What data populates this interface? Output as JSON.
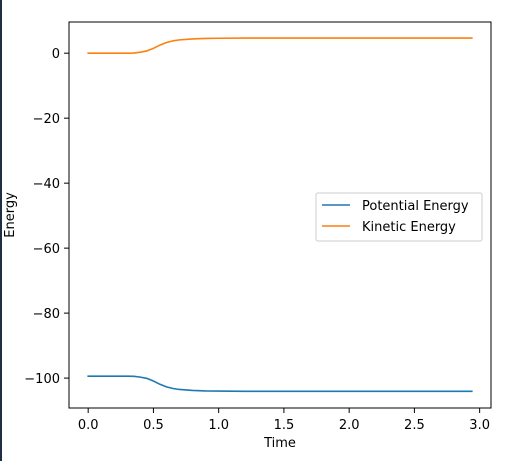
{
  "chart_data": {
    "type": "line",
    "xlabel": "Time",
    "ylabel": "Energy",
    "xlim": [
      -0.147,
      3.087
    ],
    "ylim": [
      -109.2,
      9.6
    ],
    "xticks": [
      0.0,
      0.5,
      1.0,
      1.5,
      2.0,
      2.5,
      3.0
    ],
    "xtick_labels": [
      "0.0",
      "0.5",
      "1.0",
      "1.5",
      "2.0",
      "2.5",
      "3.0"
    ],
    "yticks": [
      0,
      -20,
      -40,
      -60,
      -80,
      -100
    ],
    "ytick_labels": [
      "0",
      "−20",
      "−40",
      "−60",
      "−80",
      "−100"
    ],
    "legend_position": "center-right",
    "grid": false,
    "series": [
      {
        "name": "Potential Energy",
        "color": "#1f77b4",
        "x": [
          0.0,
          0.1,
          0.2,
          0.3,
          0.35,
          0.4,
          0.45,
          0.5,
          0.55,
          0.6,
          0.65,
          0.7,
          0.8,
          0.9,
          1.0,
          1.2,
          1.5,
          2.0,
          2.5,
          2.94
        ],
        "y": [
          -99.4,
          -99.4,
          -99.4,
          -99.4,
          -99.45,
          -99.7,
          -100.1,
          -100.9,
          -101.9,
          -102.7,
          -103.2,
          -103.5,
          -103.8,
          -103.95,
          -104.0,
          -104.05,
          -104.05,
          -104.05,
          -104.05,
          -104.05
        ]
      },
      {
        "name": "Kinetic Energy",
        "color": "#ff7f0e",
        "x": [
          0.0,
          0.1,
          0.2,
          0.3,
          0.35,
          0.4,
          0.45,
          0.5,
          0.55,
          0.6,
          0.65,
          0.7,
          0.8,
          0.9,
          1.0,
          1.2,
          1.5,
          2.0,
          2.5,
          2.94
        ],
        "y": [
          0.0,
          0.0,
          0.0,
          0.0,
          0.05,
          0.3,
          0.7,
          1.5,
          2.5,
          3.3,
          3.8,
          4.1,
          4.4,
          4.55,
          4.6,
          4.65,
          4.65,
          4.65,
          4.65,
          4.65
        ]
      }
    ]
  }
}
